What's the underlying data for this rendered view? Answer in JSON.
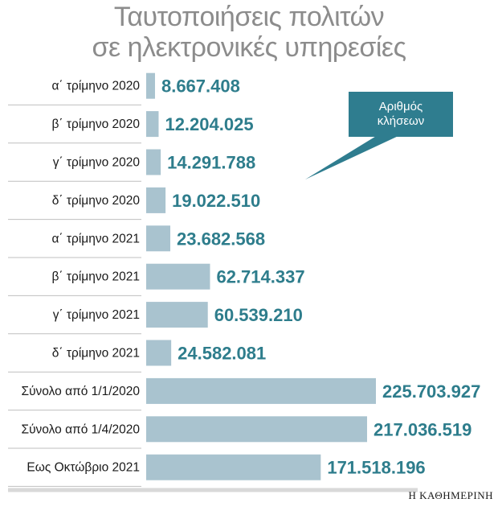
{
  "chart_data": {
    "type": "bar",
    "orientation": "horizontal",
    "title": "Ταυτοποιήσεις πολιτών σε ηλεκτρονικές υπηρεσίες",
    "title_lines": [
      "Ταυτοποιήσεις πολιτών",
      "σε ηλεκτρονικές υπηρεσίες"
    ],
    "categories": [
      "α΄ τρίμηνο 2020",
      "β΄ τρίμηνο 2020",
      "γ΄ τρίμηνο 2020",
      "δ΄ τρίμηνο 2020",
      "α΄ τρίμηνο 2021",
      "β΄ τρίμηνο 2021",
      "γ΄ τρίμηνο 2021",
      "δ΄ τρίμηνο 2021",
      "Σύνολο από 1/1/2020",
      "Σύνολο από 1/4/2020",
      "Εως Οκτώβριο 2021"
    ],
    "values": [
      8667408,
      12204025,
      14291788,
      19022510,
      23682568,
      62714337,
      60539210,
      24582081,
      225703927,
      217036519,
      171518196
    ],
    "value_labels": [
      "8.667.408",
      "12.204.025",
      "14.291.788",
      "19.022.510",
      "23.682.568",
      "62.714.337",
      "60.539.210",
      "24.582.081",
      "225.703.927",
      "217.036.519",
      "171.518.196"
    ],
    "legend": "Αριθμός κλήσεων",
    "xlabel": "",
    "ylabel": "",
    "grid": false
  },
  "colors": {
    "bar": "#a9c3cf",
    "value_text": "#2e7d8c",
    "callout": "#2f7d8f",
    "title": "#8c8c8c",
    "separator": "#bfbfbf"
  },
  "legend_lines": [
    "Αριθμός",
    "κλήσεων"
  ],
  "source": "Η ΚΑΘΗΜΕΡΙΝΗ"
}
